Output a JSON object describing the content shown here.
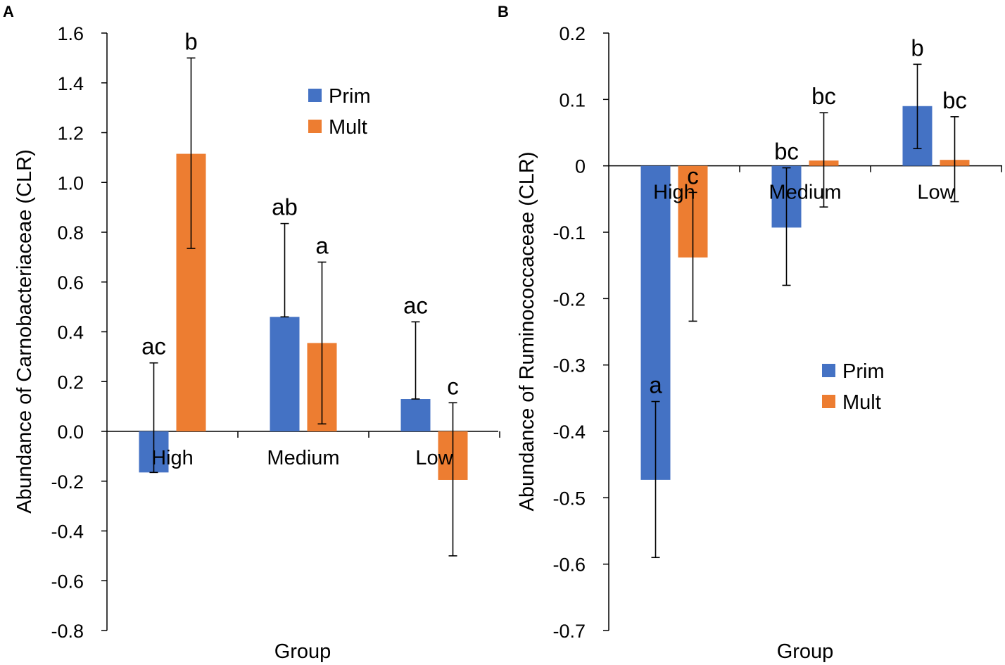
{
  "chart_data": [
    {
      "panel": "A",
      "type": "bar",
      "xlabel": "Group",
      "ylabel": "Abundance of Carnobacteriaceae (CLR)",
      "ylim": [
        -0.8,
        1.6
      ],
      "yticks": [
        -0.8,
        -0.6,
        -0.4,
        -0.2,
        0.0,
        0.2,
        0.4,
        0.6,
        0.8,
        1.0,
        1.2,
        1.4,
        1.6
      ],
      "ytick_labels": [
        "-0.8",
        "-0.6",
        "-0.4",
        "-0.2",
        "0.0",
        "0.2",
        "0.4",
        "0.6",
        "0.8",
        "1.0",
        "1.2",
        "1.4",
        "1.6"
      ],
      "categories": [
        "High",
        "Medium",
        "Low"
      ],
      "legend_position": "upper-center",
      "series": [
        {
          "name": "Prim",
          "color": "#4472C4",
          "values": [
            -0.165,
            0.46,
            0.13
          ],
          "err_low": [
            -0.165,
            0.46,
            0.13
          ],
          "err_high": [
            0.275,
            0.835,
            0.44
          ],
          "sig_labels": [
            "ac",
            "ab",
            "ac"
          ]
        },
        {
          "name": "Mult",
          "color": "#ED7D31",
          "values": [
            1.115,
            0.355,
            -0.195
          ],
          "err_low": [
            0.735,
            0.03,
            -0.5
          ],
          "err_high": [
            1.5,
            0.68,
            0.115
          ],
          "sig_labels": [
            "b",
            "a",
            "c"
          ]
        }
      ]
    },
    {
      "panel": "B",
      "type": "bar",
      "xlabel": "Group",
      "ylabel": "Abundance of Ruminococcaceae (CLR)",
      "ylim": [
        -0.7,
        0.2
      ],
      "yticks": [
        -0.7,
        -0.6,
        -0.5,
        -0.4,
        -0.3,
        -0.2,
        -0.1,
        0,
        0.1,
        0.2
      ],
      "ytick_labels": [
        "-0.7",
        "-0.6",
        "-0.5",
        "-0.4",
        "-0.3",
        "-0.2",
        "-0.1",
        "0",
        "0.1",
        "0.2"
      ],
      "categories": [
        "High",
        "Medium",
        "Low"
      ],
      "legend_position": "center-right",
      "series": [
        {
          "name": "Prim",
          "color": "#4472C4",
          "values": [
            -0.473,
            -0.093,
            0.09
          ],
          "err_low": [
            -0.59,
            -0.18,
            0.026
          ],
          "err_high": [
            -0.355,
            -0.003,
            0.153
          ],
          "sig_labels": [
            "a",
            "bc",
            "b"
          ]
        },
        {
          "name": "Mult",
          "color": "#ED7D31",
          "values": [
            -0.138,
            0.008,
            0.009
          ],
          "err_low": [
            -0.234,
            -0.062,
            -0.054
          ],
          "err_high": [
            -0.04,
            0.08,
            0.074
          ],
          "sig_labels": [
            "c",
            "bc",
            "bc"
          ]
        }
      ]
    }
  ]
}
